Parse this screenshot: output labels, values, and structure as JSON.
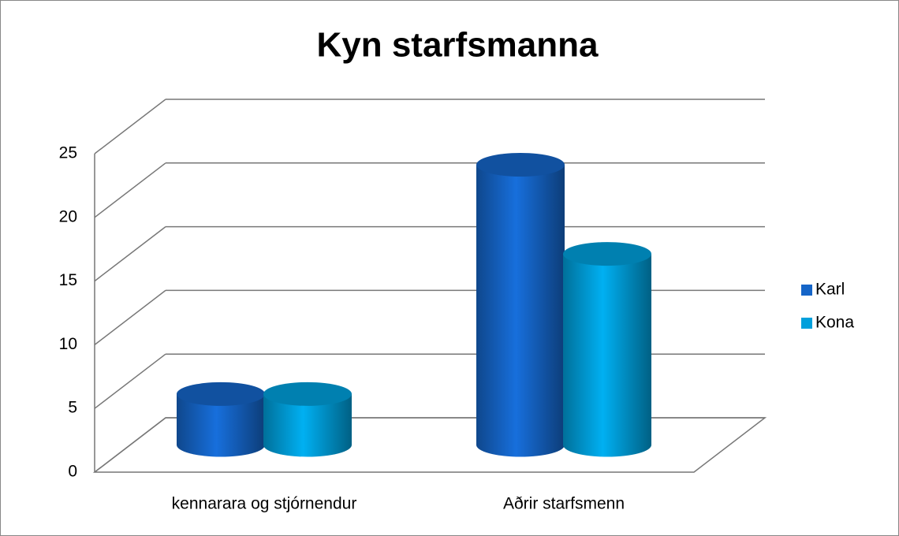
{
  "chart_data": {
    "type": "bar3d",
    "title": "Kyn starfsmanna",
    "categories": [
      "kennarara og stjórnendur",
      "Aðrir starfsmenn"
    ],
    "series": [
      {
        "name": "Karl",
        "color": "#1565c8",
        "values": [
          4,
          22
        ]
      },
      {
        "name": "Kona",
        "color": "#00a0dc",
        "values": [
          4,
          15
        ]
      }
    ],
    "ylim": [
      0,
      25
    ],
    "yticks": [
      0,
      5,
      10,
      15,
      20,
      25
    ],
    "grid": true,
    "legend": "right"
  }
}
